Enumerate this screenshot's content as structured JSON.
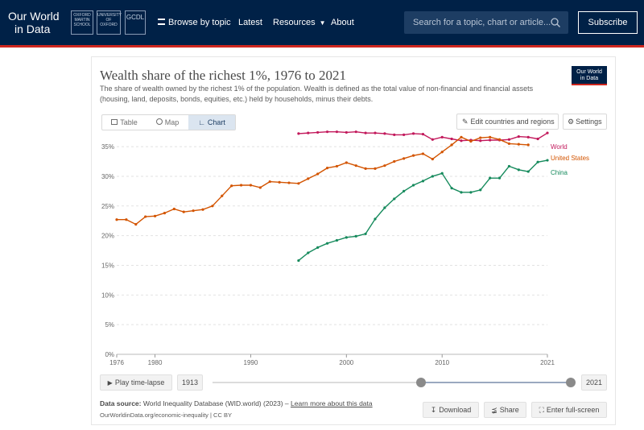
{
  "header": {
    "logo_line1": "Our World",
    "logo_line2": "in Data",
    "partners": [
      "OXFORD MARTIN SCHOOL",
      "UNIVERSITY OF OXFORD",
      "GCDL"
    ],
    "nav": [
      {
        "label": "Browse by topic"
      },
      {
        "label": "Latest"
      },
      {
        "label": "Resources"
      },
      {
        "label": "About"
      }
    ],
    "search_placeholder": "Search for a topic, chart or article...",
    "subscribe_label": "Subscribe"
  },
  "badge": {
    "line1": "Our World",
    "line2": "in Data"
  },
  "tabs": [
    {
      "label": "Table"
    },
    {
      "label": "Map"
    },
    {
      "label": "Chart"
    }
  ],
  "buttons": {
    "edit": "Edit countries and regions",
    "settings": "Settings"
  },
  "timeline": {
    "play": "Play time-lapse",
    "start": "1913",
    "end": "2021"
  },
  "footer": {
    "source_prefix": "Data source:",
    "source_text": "World Inequality Database (WID.world) (2023) –",
    "source_link": "Learn more about this data",
    "url": "OurWorldinData.org/economic-inequality | CC BY",
    "download": "Download",
    "share": "Share",
    "fullscreen": "Enter full-screen"
  },
  "colors": {
    "world": "#c2185b",
    "united_states": "#d35400",
    "china": "#158a5c",
    "header_bg": "#002147",
    "accent": "#ce261e"
  },
  "chart_data": {
    "type": "line",
    "title": "Wealth share of the richest 1%, 1976 to 2021",
    "subtitle": "The share of wealth owned by the richest 1% of the population. Wealth is defined as the total value of non-financial and financial assets (housing, land, deposits, bonds, equities, etc.) held by households, minus their debts.",
    "xlim": [
      1976,
      2021
    ],
    "ylim": [
      0,
      0.38
    ],
    "y_ticks": [
      "0%",
      "5%",
      "10%",
      "15%",
      "20%",
      "25%",
      "30%",
      "35%"
    ],
    "x_ticks": [
      "1976",
      "1980",
      "1990",
      "2000",
      "2010",
      "2021"
    ],
    "grid": true,
    "legend_placement": "right end of lines",
    "series": [
      {
        "name": "World",
        "color": "#c2185b",
        "x": [
          1995,
          1996,
          1997,
          1998,
          1999,
          2000,
          2001,
          2002,
          2003,
          2004,
          2005,
          2006,
          2007,
          2008,
          2009,
          2010,
          2011,
          2012,
          2013,
          2014,
          2015,
          2016,
          2017,
          2018,
          2019,
          2020,
          2021
        ],
        "values": [
          0.372,
          0.373,
          0.374,
          0.375,
          0.375,
          0.374,
          0.375,
          0.373,
          0.373,
          0.372,
          0.37,
          0.37,
          0.372,
          0.371,
          0.362,
          0.366,
          0.363,
          0.36,
          0.361,
          0.36,
          0.361,
          0.361,
          0.362,
          0.367,
          0.366,
          0.363,
          0.373
        ]
      },
      {
        "name": "United States",
        "color": "#d35400",
        "x": [
          1976,
          1977,
          1978,
          1979,
          1980,
          1981,
          1982,
          1983,
          1984,
          1985,
          1986,
          1987,
          1988,
          1989,
          1990,
          1991,
          1992,
          1993,
          1994,
          1995,
          1996,
          1997,
          1998,
          1999,
          2000,
          2001,
          2002,
          2003,
          2004,
          2005,
          2006,
          2007,
          2008,
          2009,
          2010,
          2011,
          2012,
          2013,
          2014,
          2015,
          2016,
          2017,
          2018,
          2019
        ],
        "values": [
          0.227,
          0.227,
          0.219,
          0.232,
          0.233,
          0.238,
          0.245,
          0.24,
          0.242,
          0.244,
          0.25,
          0.267,
          0.284,
          0.285,
          0.285,
          0.281,
          0.291,
          0.29,
          0.289,
          0.288,
          0.296,
          0.304,
          0.314,
          0.317,
          0.323,
          0.318,
          0.313,
          0.313,
          0.318,
          0.325,
          0.33,
          0.335,
          0.338,
          0.329,
          0.341,
          0.353,
          0.366,
          0.359,
          0.365,
          0.366,
          0.362,
          0.355,
          0.354,
          0.353
        ]
      },
      {
        "name": "China",
        "color": "#158a5c",
        "x": [
          1995,
          1996,
          1997,
          1998,
          1999,
          2000,
          2001,
          2002,
          2003,
          2004,
          2005,
          2006,
          2007,
          2008,
          2009,
          2010,
          2011,
          2012,
          2013,
          2014,
          2015,
          2016,
          2017,
          2018,
          2019,
          2020,
          2021
        ],
        "values": [
          0.158,
          0.171,
          0.18,
          0.187,
          0.192,
          0.197,
          0.199,
          0.203,
          0.228,
          0.247,
          0.262,
          0.275,
          0.285,
          0.292,
          0.3,
          0.305,
          0.28,
          0.273,
          0.273,
          0.277,
          0.297,
          0.297,
          0.317,
          0.311,
          0.308,
          0.324,
          0.327
        ]
      }
    ]
  }
}
